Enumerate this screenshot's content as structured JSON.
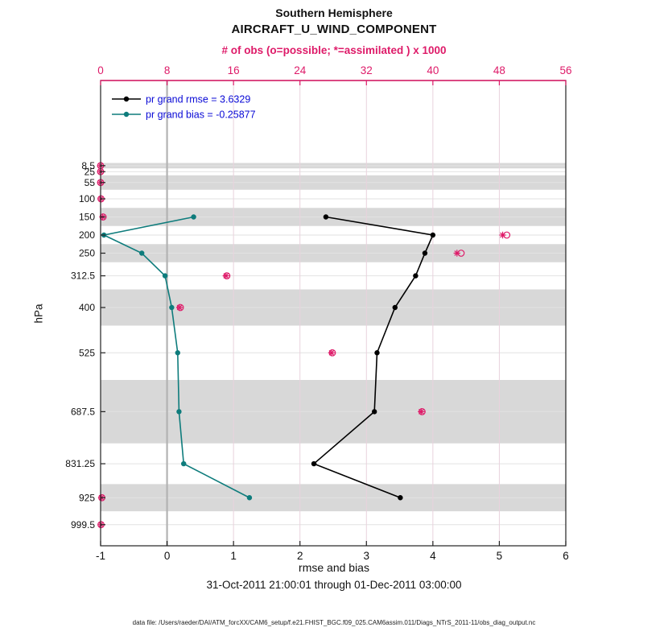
{
  "figure": {
    "title1": "Southern Hemisphere",
    "title2": "AIRCRAFT_U_WIND_COMPONENT",
    "top_axis_label": "# of obs (o=possible; *=assimilated ) x 1000",
    "xlabel": "rmse and bias",
    "ylabel": "hPa",
    "timespan": "31-Oct-2011 21:00:01 through 01-Dec-2011 03:00:00",
    "datafile": "data file: /Users/raeder/DAI/ATM_forcXX/CAM6_setup/f.e21.FHIST_BGC.f09_025.CAM6assim.011/Diags_NTrS_2011-11/obs_diag_output.nc",
    "colors": {
      "obs_pink": "#de1b69",
      "legend_text_blue": "#0909d6",
      "band_gray": "#d8d8d8",
      "grid_gray": "#e2e2e2",
      "grid_pink": "#e9d2dd",
      "zero_line_gray": "#b3b3b3"
    }
  },
  "chart_data": {
    "type": "line",
    "title": "Southern Hemisphere AIRCRAFT_U_WIND_COMPONENT rmse/bias vertical profile",
    "orientation": "vertical-profile",
    "grid": true,
    "legend_position": "top-left-inside",
    "bottom_axis": {
      "label": "rmse and bias",
      "ticks": [
        -1,
        0,
        1,
        2,
        3,
        4,
        5,
        6
      ],
      "lim": [
        -1,
        6
      ]
    },
    "top_axis": {
      "label": "# of obs (o=possible; *=assimilated ) x 1000",
      "ticks": [
        0,
        8,
        16,
        24,
        32,
        40,
        48,
        56
      ],
      "lim": [
        0,
        56
      ]
    },
    "left_axis": {
      "label": "hPa",
      "tick_levels": [
        8.5,
        25,
        55,
        100,
        150,
        200,
        250,
        312.5,
        400,
        525,
        687.5,
        831.25,
        925,
        999.5
      ]
    },
    "series": [
      {
        "name": "pr grand rmse",
        "legend_label": "pr grand rmse = 3.6329",
        "grand_value": 3.6329,
        "color": "#000000",
        "marker": "circle",
        "levels": [
          150,
          200,
          250,
          312.5,
          400,
          525,
          687.5,
          831.25,
          925
        ],
        "values": [
          2.39,
          4.0,
          3.88,
          3.74,
          3.43,
          3.16,
          3.12,
          2.21,
          3.51
        ]
      },
      {
        "name": "pr grand bias",
        "legend_label": "pr grand bias = -0.25877",
        "grand_value": -0.25877,
        "color": "#0e7c7c",
        "marker": "circle",
        "levels": [
          150,
          200,
          250,
          312.5,
          400,
          525,
          687.5,
          831.25,
          925
        ],
        "values": [
          0.4,
          -0.95,
          -0.38,
          -0.03,
          0.07,
          0.16,
          0.18,
          0.25,
          1.24
        ]
      }
    ],
    "obs_counts_x1000": {
      "levels": [
        8.5,
        25,
        55,
        100,
        150,
        200,
        250,
        312.5,
        400,
        525,
        687.5,
        925,
        999.5
      ],
      "possible": [
        0,
        0,
        0,
        0.05,
        0.3,
        48.9,
        43.4,
        15.2,
        9.6,
        27.9,
        38.7,
        0.15,
        0.05
      ],
      "assimilated": [
        0,
        0,
        0,
        0.05,
        0.25,
        48.4,
        42.9,
        15.1,
        9.5,
        27.8,
        38.6,
        0.1,
        0.05
      ]
    },
    "shaded_bands_hpa": [
      [
        1,
        16
      ],
      [
        35,
        75
      ],
      [
        125,
        175
      ],
      [
        225,
        275
      ],
      [
        350,
        450
      ],
      [
        600,
        775
      ],
      [
        887.5,
        962.5
      ]
    ]
  }
}
